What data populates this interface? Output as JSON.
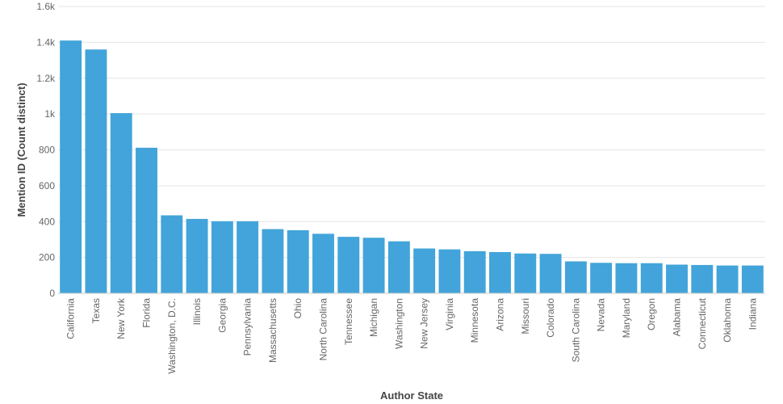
{
  "chart_data": {
    "type": "bar",
    "xlabel": "Author State",
    "ylabel": "Mention ID (Count distinct)",
    "ylim": [
      0,
      1600
    ],
    "yticks": [
      0,
      200,
      400,
      600,
      800,
      1000,
      1200,
      1400,
      1600
    ],
    "ytick_labels": [
      "0",
      "200",
      "400",
      "600",
      "800",
      "1k",
      "1.2k",
      "1.4k",
      "1.6k"
    ],
    "grid": true,
    "bar_color": "#42A4DA",
    "categories": [
      "California",
      "Texas",
      "New York",
      "Florida",
      "Washington, D.C.",
      "Illinois",
      "Georgia",
      "Pennsylvania",
      "Massachusetts",
      "Ohio",
      "North Carolina",
      "Tennessee",
      "Michigan",
      "Washington",
      "New Jersey",
      "Virginia",
      "Minnesota",
      "Arizona",
      "Missouri",
      "Colorado",
      "South Carolina",
      "Nevada",
      "Maryland",
      "Oregon",
      "Alabama",
      "Connecticut",
      "Oklahoma",
      "Indiana"
    ],
    "values": [
      1410,
      1360,
      1005,
      812,
      435,
      415,
      402,
      402,
      358,
      352,
      332,
      315,
      310,
      290,
      250,
      245,
      235,
      230,
      222,
      220,
      178,
      170,
      168,
      168,
      160,
      158,
      155,
      155
    ]
  }
}
